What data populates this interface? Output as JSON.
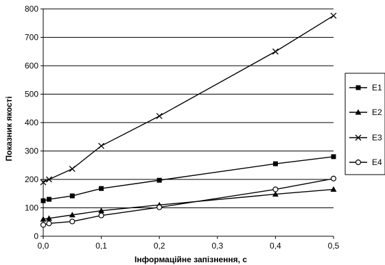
{
  "chart_data": {
    "type": "line",
    "title": "",
    "xlabel": "Інформаційне запізнення, с",
    "ylabel": "Показник якості",
    "xlim": [
      0,
      0.5
    ],
    "ylim": [
      0,
      800
    ],
    "x_ticks": [
      0.0,
      0.1,
      0.2,
      0.3,
      0.4,
      0.5
    ],
    "x_tick_labels": [
      "0,0",
      "0,1",
      "0,2",
      "0,3",
      "0,4",
      "0,5"
    ],
    "y_ticks": [
      0,
      100,
      200,
      300,
      400,
      500,
      600,
      700,
      800
    ],
    "y_tick_labels": [
      "0",
      "100",
      "200",
      "300",
      "400",
      "500",
      "600",
      "700",
      "800"
    ],
    "grid": "horizontal",
    "legend_position": "right",
    "line_color": "#000000",
    "series": [
      {
        "name": "E1",
        "marker": "filled-square",
        "x": [
          0,
          0.01,
          0.05,
          0.1,
          0.2,
          0.4,
          0.5
        ],
        "y": [
          125,
          130,
          142,
          168,
          197,
          255,
          280
        ]
      },
      {
        "name": "E2",
        "marker": "filled-triangle",
        "x": [
          0,
          0.01,
          0.05,
          0.1,
          0.2,
          0.4,
          0.5
        ],
        "y": [
          60,
          63,
          75,
          90,
          110,
          148,
          165
        ]
      },
      {
        "name": "E3",
        "marker": "cross",
        "x": [
          0,
          0.01,
          0.05,
          0.1,
          0.2,
          0.4,
          0.5
        ],
        "y": [
          190,
          200,
          237,
          318,
          423,
          650,
          776
        ]
      },
      {
        "name": "E4",
        "marker": "open-circle",
        "x": [
          0,
          0.01,
          0.05,
          0.1,
          0.2,
          0.4,
          0.5
        ],
        "y": [
          40,
          45,
          52,
          73,
          102,
          165,
          203
        ]
      }
    ]
  }
}
